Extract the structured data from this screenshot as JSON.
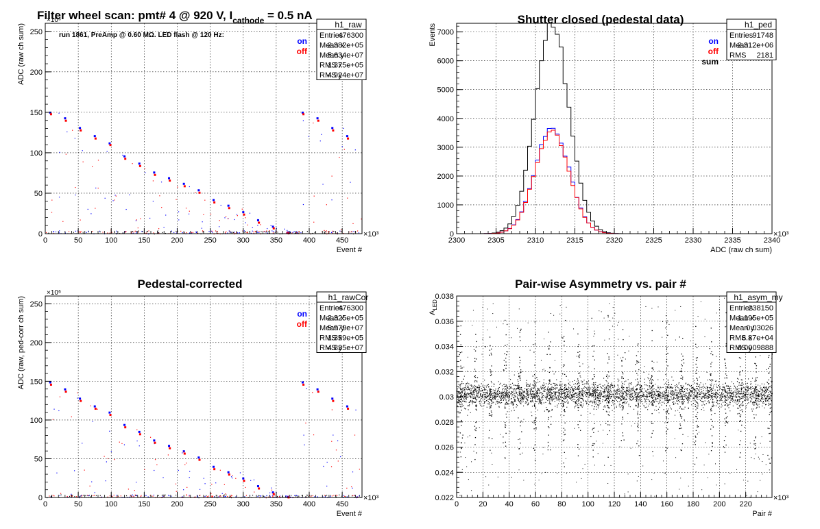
{
  "chart_data": [
    {
      "id": "raw",
      "type": "scatter",
      "title": "Filter wheel scan: pmt#   4 @   920 V, I",
      "title_sub": "cathode",
      "title_tail": " = 0.5 nA",
      "annotation": "run 1861, PreAmp @ 0.60 MΩ. LED flash @  120 Hz:",
      "xlabel": "Event #",
      "ylabel": "ADC (raw ch sum)",
      "x_multiplier": "×10³",
      "y_multiplier": "×10⁶",
      "xlim": [
        0,
        480
      ],
      "ylim": [
        0,
        260
      ],
      "xticks": [
        0,
        50,
        100,
        150,
        200,
        250,
        300,
        350,
        400,
        450
      ],
      "yticks": [
        0,
        50,
        100,
        150,
        200,
        250
      ],
      "grid": true,
      "legend": [
        "on",
        "off"
      ],
      "legend_colors": [
        "#0000ff",
        "#ff0000"
      ],
      "stats": {
        "name": "h1_raw",
        "rows": [
          [
            "Entries",
            "476300"
          ],
          [
            "Mean x",
            "2.382e+05"
          ],
          [
            "Mean y",
            "5.634e+07"
          ],
          [
            "RMS x",
            "1.375e+05"
          ],
          [
            "RMS y",
            "4.924e+07"
          ]
        ]
      },
      "level_series": [
        {
          "name": "on",
          "levels": [
            150,
            143,
            131,
            121,
            112,
            96,
            87,
            76,
            69,
            62,
            54,
            42,
            35,
            27,
            17,
            9,
            2
          ],
          "period": 22.5,
          "color": "#0000ff"
        },
        {
          "name": "off",
          "levels": [
            148,
            140,
            128,
            118,
            110,
            93,
            84,
            73,
            66,
            59,
            51,
            39,
            32,
            24,
            14,
            7,
            1
          ],
          "period": 22.5,
          "color": "#ff0000"
        }
      ]
    },
    {
      "id": "ped",
      "type": "histogram",
      "title": "Shutter closed (pedestal data)",
      "xlabel": "ADC (raw ch sum)",
      "ylabel": "Events",
      "x_multiplier": "×10³",
      "xlim": [
        2300,
        2340
      ],
      "ylim": [
        0,
        7300
      ],
      "xticks": [
        2300,
        2305,
        2310,
        2315,
        2320,
        2325,
        2330,
        2335,
        2340
      ],
      "yticks": [
        0,
        1000,
        2000,
        3000,
        4000,
        5000,
        6000,
        7000
      ],
      "grid": true,
      "legend": [
        "on",
        "off",
        "sum"
      ],
      "legend_colors": [
        "#0000ff",
        "#ff0000",
        "#000000"
      ],
      "stats": {
        "name": "h1_ped",
        "rows": [
          [
            "Entries",
            "91748"
          ],
          [
            "Mean",
            "2.312e+06"
          ],
          [
            "RMS",
            "2181"
          ]
        ]
      },
      "gaussian": {
        "mean": 2312.1,
        "sigma": 2.18,
        "peak_sum": 7150,
        "peak_on": 3650,
        "peak_off": 3550,
        "bin_width": 0.5,
        "colors": [
          "#000000",
          "#0000ff",
          "#ff0000"
        ]
      }
    },
    {
      "id": "cor",
      "type": "scatter",
      "title": "Pedestal-corrected",
      "xlabel": "Event #",
      "ylabel": "ADC (raw, ped-corr ch sum)",
      "x_multiplier": "×10³",
      "y_multiplier": "×10⁶",
      "xlim": [
        0,
        480
      ],
      "ylim": [
        0,
        260
      ],
      "xticks": [
        0,
        50,
        100,
        150,
        200,
        250,
        300,
        350,
        400,
        450
      ],
      "yticks": [
        0,
        50,
        100,
        150,
        200,
        250
      ],
      "grid": true,
      "legend": [
        "on",
        "off"
      ],
      "legend_colors": [
        "#0000ff",
        "#ff0000"
      ],
      "stats": {
        "name": "h1_rawCor",
        "rows": [
          [
            "Entries",
            "476300"
          ],
          [
            "Mean x",
            "2.325e+05"
          ],
          [
            "Mean y",
            "5.979e+07"
          ],
          [
            "RMS x",
            "1.359e+05"
          ],
          [
            "RMS y",
            "4.835e+07"
          ]
        ]
      },
      "level_series": [
        {
          "name": "on",
          "levels": [
            149,
            140,
            128,
            118,
            110,
            94,
            85,
            74,
            67,
            60,
            52,
            40,
            33,
            25,
            15,
            7,
            1
          ],
          "period": 22.5,
          "color": "#0000ff"
        },
        {
          "name": "off",
          "levels": [
            146,
            137,
            125,
            115,
            107,
            91,
            82,
            71,
            64,
            57,
            49,
            37,
            30,
            22,
            12,
            5,
            0.5
          ],
          "period": 22.5,
          "color": "#ff0000"
        }
      ]
    },
    {
      "id": "asym",
      "type": "scatter",
      "title": "Pair-wise Asymmetry vs. pair #",
      "xlabel": "Pair #",
      "ylabel": "A",
      "ylabel_sub": "LED",
      "x_multiplier": "×10³",
      "xlim": [
        0,
        240
      ],
      "ylim": [
        0.022,
        0.038
      ],
      "xticks": [
        0,
        20,
        40,
        60,
        80,
        100,
        120,
        140,
        160,
        180,
        200,
        220
      ],
      "yticks": [
        0.022,
        0.024,
        0.026,
        0.028,
        0.03,
        0.032,
        0.034,
        0.036,
        0.038
      ],
      "grid": true,
      "stats": {
        "name": "h1_asym_my",
        "rows": [
          [
            "Entries",
            "238150"
          ],
          [
            "Mean x",
            "1.195e+05"
          ],
          [
            "Mean y",
            "0.03026"
          ],
          [
            "RMS x",
            "6.87e+04"
          ],
          [
            "RMS y",
            "0.0009888"
          ]
        ]
      },
      "band": {
        "center": 0.0302,
        "halfwidth": 0.0011,
        "spike_period": 11.2,
        "spike_up": 0.0068,
        "spike_down": 0.006
      }
    }
  ]
}
